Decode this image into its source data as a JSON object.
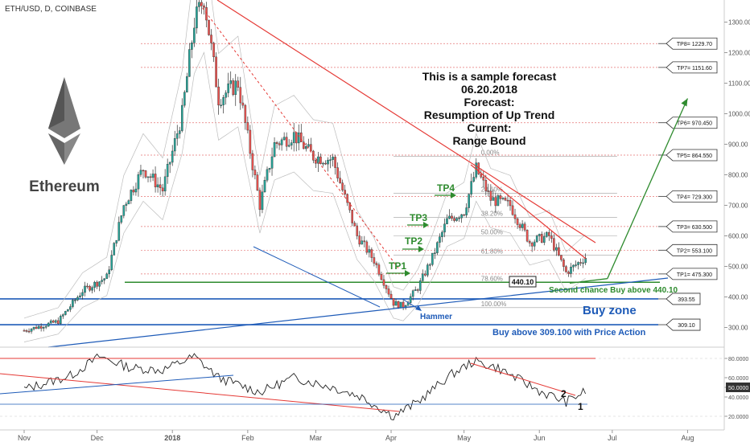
{
  "header": {
    "symbol": "ETH/USD, D, COINBASE"
  },
  "logo": {
    "brand": "Ethereum"
  },
  "forecast": {
    "lines": [
      "This is a sample forecast",
      "06.20.2018",
      "Forecast:",
      "Resumption of Up Trend",
      "Current:",
      "Range Bound"
    ]
  },
  "annotations": {
    "tp_arrows": [
      "TP1",
      "TP2",
      "TP3",
      "TP4"
    ],
    "hammer": "Hammer",
    "second_chance": "Second chance Buy above 440.10",
    "buy_zone": "Buy zone",
    "buy_above": "Buy above 309.100 with Price Action",
    "level_box": "440.10",
    "rsi_marks": [
      "1",
      "2"
    ]
  },
  "fibonacci": [
    {
      "label": "0.00%",
      "price": 860
    },
    {
      "label": "23.60%",
      "price": 740
    },
    {
      "label": "38.20%",
      "price": 660
    },
    {
      "label": "50.00%",
      "price": 600
    },
    {
      "label": "61.80%",
      "price": 537
    },
    {
      "label": "78.60%",
      "price": 448
    },
    {
      "label": "100.00%",
      "price": 365
    }
  ],
  "targets": [
    {
      "label": "TP8= 1229.70",
      "price": 1229.7
    },
    {
      "label": "TP7= 1151.60",
      "price": 1151.6
    },
    {
      "label": "TP6= 970.450",
      "price": 970.45
    },
    {
      "label": "TP5= 864.550",
      "price": 864.55
    },
    {
      "label": "TP4= 729.300",
      "price": 729.3
    },
    {
      "label": "TP3= 630.500",
      "price": 630.5
    },
    {
      "label": "TP2= 553.100",
      "price": 553.1
    },
    {
      "label": "TP1= 475.300",
      "price": 475.3
    }
  ],
  "zone_labels": [
    {
      "label": "393.55",
      "price": 393.55
    },
    {
      "label": "309.10",
      "price": 309.1
    }
  ],
  "colors": {
    "bull": "#26a69a",
    "bear": "#ef5350",
    "trend_red": "#e53935",
    "blue": "#1e5bb8",
    "green": "#2e8b2e",
    "rsi": "#222222",
    "fib": "#9e9e9e",
    "target_line": "#e57373"
  },
  "chart_data": {
    "type": "candlestick",
    "y_axis": {
      "ticks": [
        1300,
        1200,
        1100,
        1000,
        900,
        800,
        700,
        600,
        500,
        400,
        300
      ],
      "tick_labels": [
        "1300.00",
        "1200.00",
        "1100.00",
        "1000.00",
        "900.00",
        "800.00",
        "700.00",
        "600.00",
        "500.00",
        "400.00",
        "300.00"
      ]
    },
    "x_axis": {
      "labels": [
        "Nov",
        "Dec",
        "2018",
        "Feb",
        "Mar",
        "Apr",
        "May",
        "Jun",
        "Jul",
        "Aug"
      ]
    },
    "close_path": [
      [
        "2017-11-01",
        290
      ],
      [
        "2017-11-15",
        320
      ],
      [
        "2017-11-25",
        420
      ],
      [
        "2017-12-05",
        465
      ],
      [
        "2017-12-12",
        700
      ],
      [
        "2017-12-20",
        820
      ],
      [
        "2017-12-28",
        750
      ],
      [
        "2018-01-05",
        1000
      ],
      [
        "2018-01-10",
        1300
      ],
      [
        "2018-01-14",
        1380
      ],
      [
        "2018-01-20",
        1050
      ],
      [
        "2018-01-28",
        1100
      ],
      [
        "2018-02-06",
        700
      ],
      [
        "2018-02-12",
        900
      ],
      [
        "2018-02-20",
        930
      ],
      [
        "2018-02-28",
        860
      ],
      [
        "2018-03-08",
        850
      ],
      [
        "2018-03-18",
        600
      ],
      [
        "2018-03-25",
        520
      ],
      [
        "2018-04-02",
        380
      ],
      [
        "2018-04-06",
        370
      ],
      [
        "2018-04-12",
        430
      ],
      [
        "2018-04-18",
        530
      ],
      [
        "2018-04-24",
        650
      ],
      [
        "2018-05-01",
        680
      ],
      [
        "2018-05-06",
        820
      ],
      [
        "2018-05-12",
        720
      ],
      [
        "2018-05-20",
        700
      ],
      [
        "2018-05-28",
        580
      ],
      [
        "2018-06-05",
        600
      ],
      [
        "2018-06-12",
        480
      ],
      [
        "2018-06-20",
        530
      ]
    ],
    "projection": [
      [
        "2018-06-29",
        460
      ],
      [
        "2018-08-01",
        1050
      ]
    ],
    "rsi": {
      "ticks": [
        80,
        60,
        50,
        40,
        20
      ],
      "tick_labels": [
        "80.0000",
        "60.0000",
        "50.0000",
        "40.0000",
        "20.0000"
      ],
      "current_label": "50.0000",
      "path": [
        [
          "2017-11-01",
          48
        ],
        [
          "2017-11-20",
          62
        ],
        [
          "2017-12-02",
          82
        ],
        [
          "2017-12-15",
          70
        ],
        [
          "2017-12-28",
          68
        ],
        [
          "2018-01-10",
          82
        ],
        [
          "2018-01-20",
          60
        ],
        [
          "2018-02-06",
          45
        ],
        [
          "2018-02-20",
          60
        ],
        [
          "2018-03-08",
          50
        ],
        [
          "2018-03-20",
          40
        ],
        [
          "2018-04-02",
          20
        ],
        [
          "2018-04-12",
          35
        ],
        [
          "2018-04-25",
          62
        ],
        [
          "2018-05-05",
          77
        ],
        [
          "2018-05-15",
          70
        ],
        [
          "2018-06-02",
          45
        ],
        [
          "2018-06-12",
          35
        ],
        [
          "2018-06-20",
          46
        ]
      ]
    }
  }
}
